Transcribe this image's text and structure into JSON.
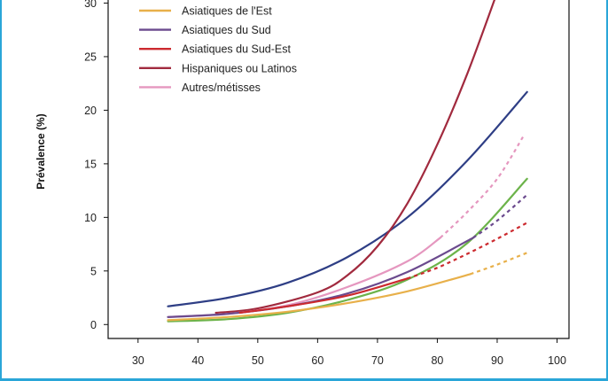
{
  "chart_data": {
    "type": "line",
    "title": "",
    "xlabel": "",
    "ylabel": "Prévalence (%)",
    "xlim": [
      25,
      102
    ],
    "ylim": [
      -1.3,
      30.7
    ],
    "x_ticks": [
      30,
      40,
      50,
      60,
      70,
      80,
      90,
      100
    ],
    "y_ticks": [
      0,
      5,
      10,
      15,
      20,
      25,
      30
    ],
    "x_tick_labels": [
      "30",
      "40",
      "50",
      "60",
      "70",
      "80",
      "90",
      "100"
    ],
    "y_tick_labels": [
      "0",
      "5",
      "10",
      "15",
      "20",
      "25",
      "30"
    ],
    "legend_position": "top-left",
    "legend": [
      {
        "label": "Asiatiques de l'Est",
        "color": "#e8b04a"
      },
      {
        "label": "Asiatiques du Sud",
        "color": "#6b4a8e"
      },
      {
        "label": "Asiatiques du Sud-Est",
        "color": "#cc2a2f"
      },
      {
        "label": "Hispaniques ou Latinos",
        "color": "#a12a3e"
      },
      {
        "label": "Autres/métisses",
        "color": "#e597bf"
      }
    ],
    "series": [
      {
        "color": "#2e3e85",
        "solid": [
          [
            35,
            1.7
          ],
          [
            45,
            2.5
          ],
          [
            55,
            3.9
          ],
          [
            65,
            6.3
          ],
          [
            75,
            10.0
          ],
          [
            85,
            15.3
          ],
          [
            95,
            21.7
          ]
        ],
        "dashed": []
      },
      {
        "color": "#6cb34a",
        "solid": [
          [
            35,
            0.3
          ],
          [
            45,
            0.5
          ],
          [
            55,
            1.1
          ],
          [
            65,
            2.3
          ],
          [
            75,
            4.2
          ],
          [
            85,
            7.6
          ],
          [
            95,
            13.6
          ]
        ],
        "dashed": []
      },
      {
        "name": "Hispaniques ou Latinos",
        "color": "#a12a3e",
        "solid": [
          [
            43,
            1.1
          ],
          [
            50,
            1.5
          ],
          [
            60,
            3.0
          ],
          [
            65,
            4.6
          ],
          [
            70,
            7.3
          ],
          [
            75,
            11.3
          ],
          [
            80,
            16.8
          ],
          [
            85,
            23.4
          ],
          [
            90,
            31.0
          ]
        ],
        "dashed": []
      },
      {
        "name": "Autres/métisses",
        "color": "#e597bf",
        "solid": [
          [
            35,
            0.7
          ],
          [
            45,
            1.0
          ],
          [
            55,
            1.8
          ],
          [
            65,
            3.5
          ],
          [
            75,
            5.9
          ],
          [
            80.5,
            8.1
          ]
        ],
        "dashed": [
          [
            80.5,
            8.1
          ],
          [
            85,
            10.5
          ],
          [
            90,
            13.6
          ],
          [
            94.5,
            17.7
          ]
        ]
      },
      {
        "name": "Asiatiques du Sud",
        "color": "#6b4a8e",
        "solid": [
          [
            35,
            0.7
          ],
          [
            45,
            1.0
          ],
          [
            55,
            1.7
          ],
          [
            65,
            2.9
          ],
          [
            75,
            4.9
          ],
          [
            86,
            8.1
          ]
        ],
        "dashed": [
          [
            86,
            8.1
          ],
          [
            90,
            9.7
          ],
          [
            95,
            12.1
          ]
        ]
      },
      {
        "name": "Asiatiques du Sud-Est",
        "color": "#cc2a2f",
        "solid": [
          [
            47,
            1.1
          ],
          [
            55,
            1.7
          ],
          [
            65,
            2.7
          ],
          [
            75,
            4.3
          ]
        ],
        "dashed": [
          [
            75,
            4.3
          ],
          [
            80,
            5.3
          ],
          [
            85,
            6.6
          ],
          [
            90,
            8.0
          ],
          [
            95,
            9.5
          ]
        ]
      },
      {
        "name": "Asiatiques de l'Est",
        "color": "#e8b04a",
        "solid": [
          [
            35,
            0.4
          ],
          [
            45,
            0.7
          ],
          [
            55,
            1.2
          ],
          [
            65,
            2.0
          ],
          [
            75,
            3.1
          ],
          [
            85.5,
            4.7
          ]
        ],
        "dashed": [
          [
            85.5,
            4.7
          ],
          [
            90,
            5.6
          ],
          [
            95,
            6.7
          ]
        ]
      }
    ]
  }
}
